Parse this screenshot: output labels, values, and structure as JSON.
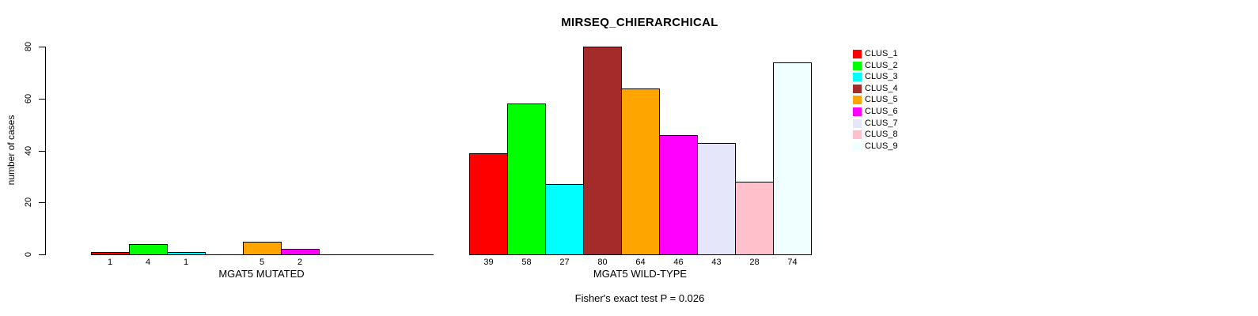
{
  "chart_data": {
    "type": "bar",
    "title": "MIRSEQ_CHIERARCHICAL",
    "ylabel": "number of cases",
    "xlabel": "",
    "ylim": [
      0,
      80
    ],
    "yticks": [
      0,
      20,
      40,
      60,
      80
    ],
    "grid": false,
    "legend_position": "right",
    "categories": [
      "CLUS_1",
      "CLUS_2",
      "CLUS_3",
      "CLUS_4",
      "CLUS_5",
      "CLUS_6",
      "CLUS_7",
      "CLUS_8",
      "CLUS_9"
    ],
    "colors": [
      "#FF0000",
      "#00FF00",
      "#00FFFF",
      "#A52A2A",
      "#FFA500",
      "#FF00FF",
      "#E6E6FA",
      "#FFC0CB",
      "#F0FFFF"
    ],
    "series": [
      {
        "name": "MGAT5 MUTATED",
        "values": [
          1,
          4,
          1,
          0,
          5,
          2,
          0,
          0,
          0
        ]
      },
      {
        "name": "MGAT5 WILD-TYPE",
        "values": [
          39,
          58,
          27,
          80,
          64,
          46,
          43,
          28,
          74
        ]
      }
    ],
    "bar_value_labels": {
      "MGAT5 MUTATED": [
        "1",
        "4",
        "1",
        "",
        "5",
        "2",
        "",
        "",
        ""
      ],
      "MGAT5 WILD-TYPE": [
        "39",
        "58",
        "27",
        "80",
        "64",
        "46",
        "43",
        "28",
        "74"
      ]
    },
    "annotation": "Fisher's exact test P = 0.026"
  }
}
